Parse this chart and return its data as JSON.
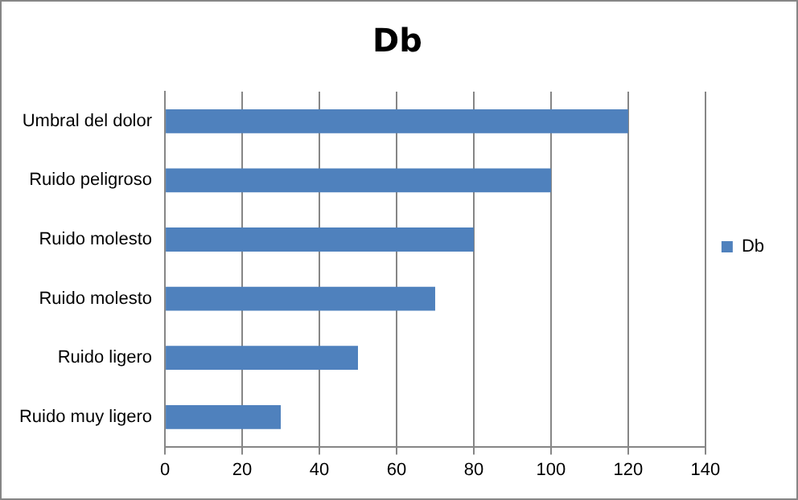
{
  "chart_data": {
    "type": "bar",
    "title": "Db",
    "orientation": "horizontal",
    "categories": [
      "Umbral del dolor",
      "Ruido peligroso",
      "Ruido molesto",
      "Ruido molesto",
      "Ruido ligero",
      "Ruido muy ligero"
    ],
    "series": [
      {
        "name": "Db",
        "color": "#4f81bd",
        "values": [
          120,
          100,
          80,
          70,
          50,
          30
        ]
      }
    ],
    "xlim": [
      0,
      140
    ],
    "xticks": [
      0,
      20,
      40,
      60,
      80,
      100,
      120,
      140
    ],
    "grid": "x",
    "legend": "right"
  }
}
